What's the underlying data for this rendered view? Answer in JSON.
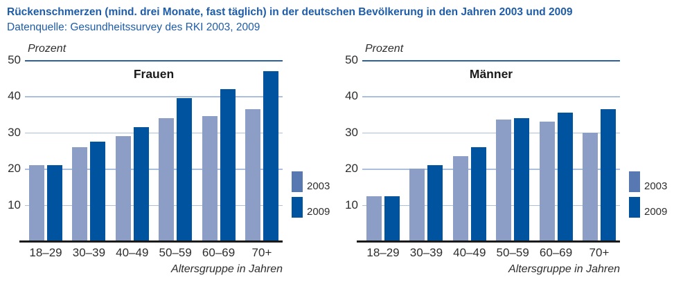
{
  "header": {
    "title": "Rückenschmerzen (mind. drei Monate, fast täglich) in der deutschen Bevölkerung in den Jahren 2003 und 2009",
    "subtitle": "Datenquelle: Gesundheitssurvey des RKI 2003, 2009"
  },
  "colors": {
    "accent_blue": "#1E5CA8",
    "bar_2003": "#8C9DC6",
    "bar_2009": "#00539E",
    "legend_2003": "#5878B2",
    "gridline": "#A9BFDD",
    "top_gridline": "#2B5F9E",
    "axis_line": "#1A1A1A"
  },
  "chart_data": [
    {
      "type": "bar",
      "title": "Frauen",
      "ylabel": "Prozent",
      "xlabel": "Altersgruppe in Jahren",
      "ylim": [
        0,
        50
      ],
      "yticks": [
        50,
        40,
        30,
        20,
        10
      ],
      "grid": true,
      "legend_position": "right",
      "categories": [
        "18–29",
        "30–39",
        "40–49",
        "50–59",
        "60–69",
        "70+"
      ],
      "series": [
        {
          "name": "2003",
          "values": [
            21,
            26,
            29,
            34,
            34.5,
            36.5
          ]
        },
        {
          "name": "2009",
          "values": [
            21,
            27.5,
            31.5,
            39.5,
            42,
            47
          ]
        }
      ]
    },
    {
      "type": "bar",
      "title": "Männer",
      "ylabel": "Prozent",
      "xlabel": "Altersgruppe in Jahren",
      "ylim": [
        0,
        50
      ],
      "yticks": [
        50,
        40,
        30,
        20,
        10
      ],
      "grid": true,
      "legend_position": "right",
      "categories": [
        "18–29",
        "30–39",
        "40–49",
        "50–59",
        "60–69",
        "70+"
      ],
      "series": [
        {
          "name": "2003",
          "values": [
            12.5,
            20,
            23.5,
            33.5,
            33,
            30
          ]
        },
        {
          "name": "2009",
          "values": [
            12.5,
            21,
            26,
            34,
            35.5,
            36.5
          ]
        }
      ]
    }
  ]
}
